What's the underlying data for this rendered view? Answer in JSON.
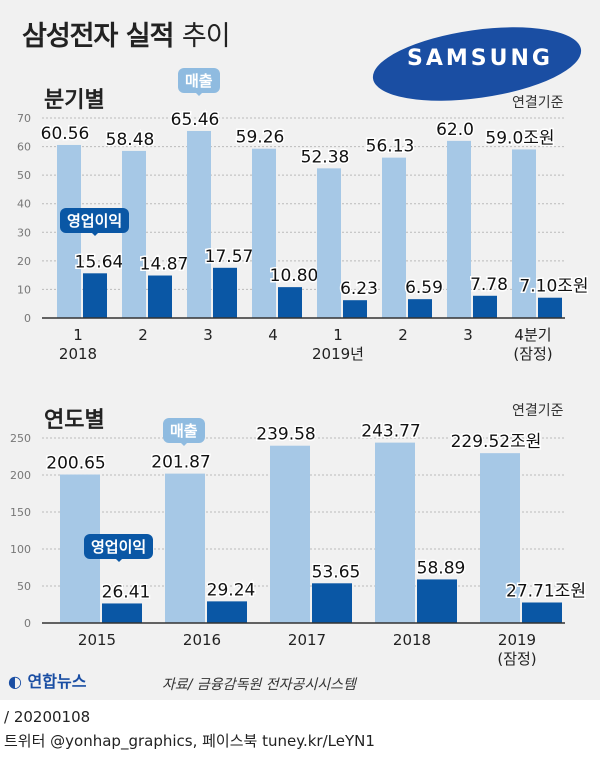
{
  "title_bold": "삼성전자 실적",
  "title_light": "추이",
  "logo": "SAMSUNG",
  "source": "자료/ 금융감독원 전자공시시스템",
  "agency": "연합뉴스",
  "footer_date": "/ 20200108",
  "footer_social": "트위터 @yonhap_graphics, 페이스북 tuney.kr/LeYN1",
  "colors": {
    "sales": "#a6c8e6",
    "op": "#0a57a5"
  },
  "chart_data": [
    {
      "type": "bar",
      "title": "분기별",
      "basis": "연결기준",
      "sales_tag": "매출",
      "op_tag": "영업이익",
      "categories": [
        "1",
        "2",
        "3",
        "4",
        "1",
        "2",
        "3",
        "4분기"
      ],
      "sub_labels": [
        "2018",
        "",
        "",
        "",
        "2019년",
        "",
        "",
        "(잠정)"
      ],
      "yticks": [
        0,
        10,
        20,
        30,
        40,
        50,
        60,
        70
      ],
      "ylim": [
        0,
        70
      ],
      "series": [
        {
          "name": "매출",
          "values": [
            60.56,
            58.48,
            65.46,
            59.26,
            52.38,
            56.13,
            62.0,
            59.0
          ],
          "labels": [
            "60.56",
            "58.48",
            "65.46",
            "59.26",
            "52.38",
            "56.13",
            "62.0",
            "59.0조원"
          ]
        },
        {
          "name": "영업이익",
          "values": [
            15.64,
            14.87,
            17.57,
            10.8,
            6.23,
            6.59,
            7.78,
            7.1
          ],
          "labels": [
            "15.64",
            "14.87",
            "17.57",
            "10.80",
            "6.23",
            "6.59",
            "7.78",
            "7.10조원"
          ]
        }
      ]
    },
    {
      "type": "bar",
      "title": "연도별",
      "basis": "연결기준",
      "sales_tag": "매출",
      "op_tag": "영업이익",
      "categories": [
        "2015",
        "2016",
        "2017",
        "2018",
        "2019"
      ],
      "sub_labels": [
        "",
        "",
        "",
        "",
        "(잠정)"
      ],
      "yticks": [
        0,
        50,
        100,
        150,
        200,
        250
      ],
      "ylim": [
        0,
        250
      ],
      "series": [
        {
          "name": "매출",
          "values": [
            200.65,
            201.87,
            239.58,
            243.77,
            229.52
          ],
          "labels": [
            "200.65",
            "201.87",
            "239.58",
            "243.77",
            "229.52조원"
          ]
        },
        {
          "name": "영업이익",
          "values": [
            26.41,
            29.24,
            53.65,
            58.89,
            27.71
          ],
          "labels": [
            "26.41",
            "29.24",
            "53.65",
            "58.89",
            "27.71조원"
          ]
        }
      ]
    }
  ]
}
